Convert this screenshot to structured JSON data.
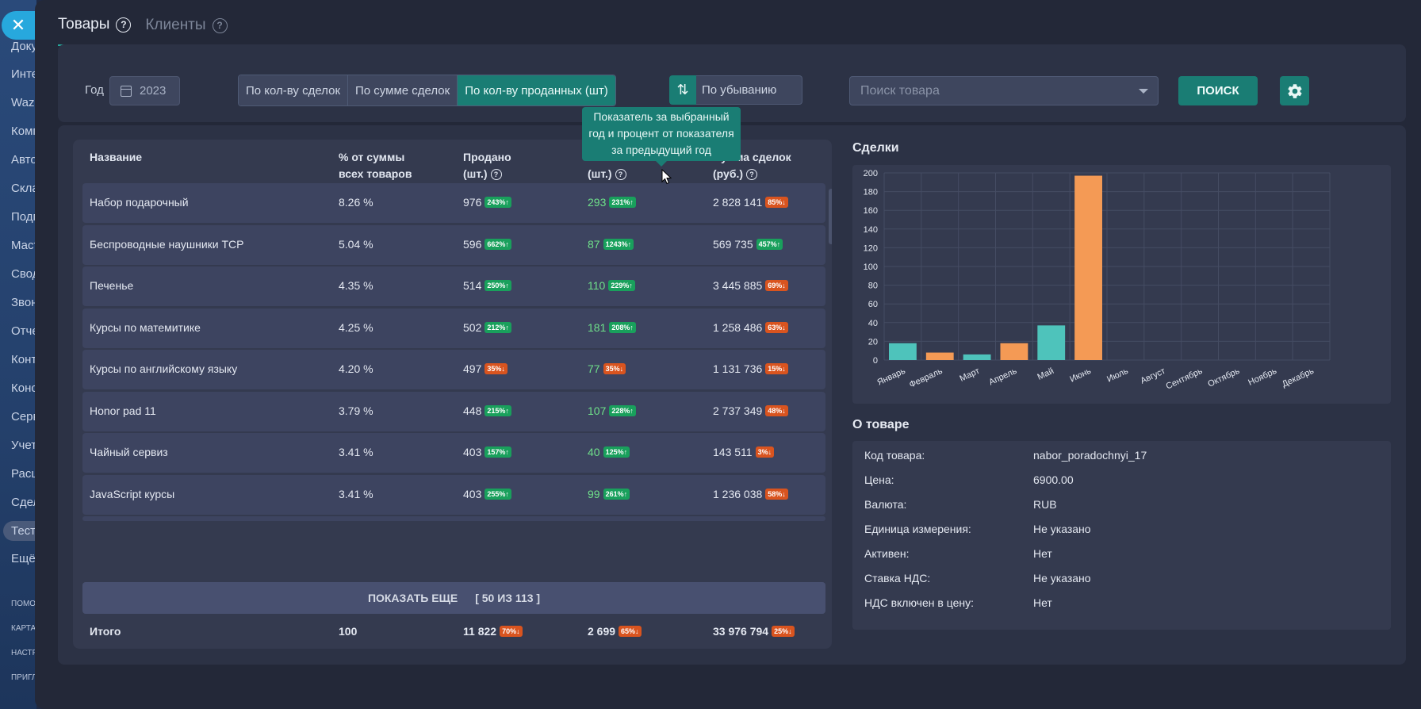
{
  "sidebar": {
    "items": [
      "Доку",
      "Инте",
      "Wazz",
      "Комп",
      "Авто",
      "Скла",
      "Подг",
      "Маст",
      "Свод",
      "Звон",
      "Отче",
      "Конт",
      "Конс",
      "Серв",
      "Учет",
      "Расш",
      "Сдел",
      "Тест",
      "Ещё"
    ],
    "footer": [
      "ПОМО",
      "КАРТА",
      "НАСТР",
      "ПРИГЛ"
    ]
  },
  "close_label": "✕",
  "tabs": [
    {
      "label": "Товары",
      "active": true
    },
    {
      "label": "Клиенты",
      "active": false
    }
  ],
  "filters": {
    "year_label": "Год",
    "year_value": "2023",
    "segments": [
      "По кол-ву сделок",
      "По сумме сделок",
      "По кол-ву проданных (шт)"
    ],
    "active_segment": 2,
    "sort_icon": "⇅",
    "sort_label": "По убыванию",
    "search_placeholder": "Поиск товара",
    "search_button": "ПОИСК",
    "settings_icon": "gear-icon"
  },
  "table": {
    "headers": {
      "name": "Название",
      "percent_line1": "% от суммы",
      "percent_line2": "всех товаров",
      "sold_line1": "Продано",
      "sold_line2": "(шт.)",
      "hidden_line2": "(шт.)",
      "sum_line1": "Сумма сделок",
      "sum_line2": "(руб.)"
    },
    "rows": [
      {
        "name": "Набор подарочный",
        "percent": "8.26 %",
        "sold": "976",
        "sold_badge": "243%↑",
        "sold_dir": "up",
        "col4": "293",
        "col4_badge": "231%↑",
        "col4_dir": "up",
        "sum": "2 828 141",
        "sum_badge": "85%↓",
        "sum_dir": "down"
      },
      {
        "name": "Беспроводные наушники TCP",
        "percent": "5.04 %",
        "sold": "596",
        "sold_badge": "662%↑",
        "sold_dir": "up",
        "col4": "87",
        "col4_badge": "1243%↑",
        "col4_dir": "up",
        "sum": "569 735",
        "sum_badge": "457%↑",
        "sum_dir": "up"
      },
      {
        "name": "Печенье",
        "percent": "4.35 %",
        "sold": "514",
        "sold_badge": "250%↑",
        "sold_dir": "up",
        "col4": "110",
        "col4_badge": "229%↑",
        "col4_dir": "up",
        "sum": "3 445 885",
        "sum_badge": "69%↓",
        "sum_dir": "down"
      },
      {
        "name": "Курсы по матемитике",
        "percent": "4.25 %",
        "sold": "502",
        "sold_badge": "212%↑",
        "sold_dir": "up",
        "col4": "181",
        "col4_badge": "208%↑",
        "col4_dir": "up",
        "sum": "1 258 486",
        "sum_badge": "63%↓",
        "sum_dir": "down"
      },
      {
        "name": "Курсы по английскому языку",
        "percent": "4.20 %",
        "sold": "497",
        "sold_badge": "35%↓",
        "sold_dir": "down",
        "col4": "77",
        "col4_badge": "35%↓",
        "col4_dir": "down",
        "sum": "1 131 736",
        "sum_badge": "15%↓",
        "sum_dir": "down"
      },
      {
        "name": "Honor pad 11",
        "percent": "3.79 %",
        "sold": "448",
        "sold_badge": "215%↑",
        "sold_dir": "up",
        "col4": "107",
        "col4_badge": "228%↑",
        "col4_dir": "up",
        "sum": "2 737 349",
        "sum_badge": "48%↓",
        "sum_dir": "down"
      },
      {
        "name": "Чайный сервиз",
        "percent": "3.41 %",
        "sold": "403",
        "sold_badge": "157%↑",
        "sold_dir": "up",
        "col4": "40",
        "col4_badge": "125%↑",
        "col4_dir": "up",
        "sum": "143 511",
        "sum_badge": "3%↓",
        "sum_dir": "down"
      },
      {
        "name": "JavaScript курсы",
        "percent": "3.41 %",
        "sold": "403",
        "sold_badge": "255%↑",
        "sold_dir": "up",
        "col4": "99",
        "col4_badge": "261%↑",
        "col4_dir": "up",
        "sum": "1 236 038",
        "sum_badge": "58%↓",
        "sum_dir": "down"
      }
    ],
    "show_more": "ПОКАЗАТЬ ЕЩЕ",
    "show_more_count": "[ 50 ИЗ 113 ]",
    "total": {
      "label": "Итого",
      "percent": "100",
      "sold": "11 822",
      "sold_badge": "70%↓",
      "col4": "2 699",
      "col4_badge": "65%↓",
      "sum": "33 976 794",
      "sum_badge": "25%↓"
    }
  },
  "tooltip": {
    "lines": [
      "Показатель за выбранный",
      "год и процент от показателя",
      "за предыдущий год"
    ]
  },
  "deals": {
    "title": "Сделки"
  },
  "chart_data": {
    "type": "bar",
    "title": "Сделки",
    "categories": [
      "Январь",
      "Февраль",
      "Март",
      "Апрель",
      "Май",
      "Июнь",
      "Июль",
      "Август",
      "Сентябрь",
      "Октябрь",
      "Ноябрь",
      "Декабрь"
    ],
    "values": [
      18,
      8,
      6,
      18,
      37,
      197,
      0,
      0,
      0,
      0,
      0,
      0
    ],
    "bar_colors": [
      "#4ec3bb",
      "#f49a55",
      "#4ec3bb",
      "#f49a55",
      "#4ec3bb",
      "#f49a55",
      "#4ec3bb",
      "#f49a55",
      "#4ec3bb",
      "#f49a55",
      "#4ec3bb",
      "#f49a55"
    ],
    "ylim": [
      0,
      200
    ],
    "yticks": [
      0,
      20,
      40,
      60,
      80,
      100,
      120,
      140,
      160,
      180,
      200
    ],
    "grid": true,
    "legend": "none"
  },
  "product": {
    "title": "О товаре",
    "fields": [
      {
        "key": "Код товара:",
        "value": "nabor_poradochnyi_17"
      },
      {
        "key": "Цена:",
        "value": "6900.00"
      },
      {
        "key": "Валюта:",
        "value": "RUB"
      },
      {
        "key": "Единица измерения:",
        "value": "Не указано"
      },
      {
        "key": "Активен:",
        "value": "Нет"
      },
      {
        "key": "Ставка НДС:",
        "value": "Не указано"
      },
      {
        "key": "НДС включен в цену:",
        "value": "Нет"
      }
    ]
  },
  "colors": {
    "accent": "#1a7d74",
    "up": "#19a05c",
    "down": "#d9541f",
    "bar_teal": "#4ec3bb",
    "bar_orange": "#f49a55"
  }
}
